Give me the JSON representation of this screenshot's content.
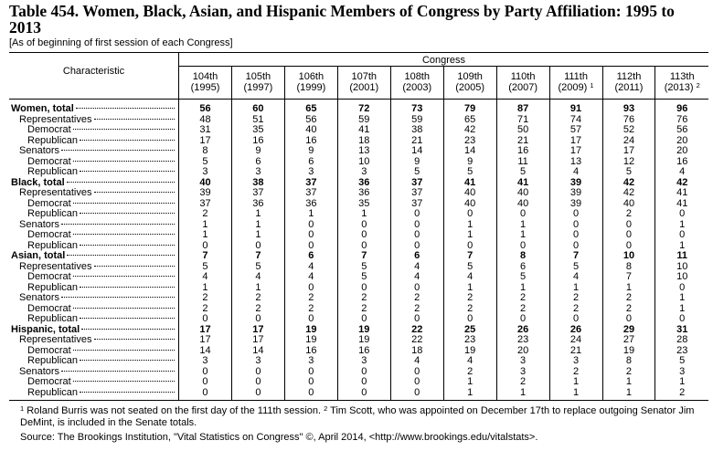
{
  "header": {
    "title": "Table 454. Women, Black, Asian, and Hispanic Members of Congress by Party Affiliation: 1995 to 2013",
    "subtitle": "[As of beginning of first session of each Congress]"
  },
  "table": {
    "stub_heading": "Characteristic",
    "spanner": "Congress",
    "columns": [
      {
        "ordinal": "104th",
        "year": "(1995)"
      },
      {
        "ordinal": "105th",
        "year": "(1997)"
      },
      {
        "ordinal": "106th",
        "year": "(1999)"
      },
      {
        "ordinal": "107th",
        "year": "(2001)"
      },
      {
        "ordinal": "108th",
        "year": "(2003)"
      },
      {
        "ordinal": "109th",
        "year": "(2005)"
      },
      {
        "ordinal": "110th",
        "year": "(2007)"
      },
      {
        "ordinal": "111th",
        "year": "(2009)",
        "note": "1"
      },
      {
        "ordinal": "112th",
        "year": "(2011)"
      },
      {
        "ordinal": "113th",
        "year": "(2013)",
        "note": "2"
      }
    ],
    "groups": [
      {
        "label": "Women, total",
        "values": [
          56,
          60,
          65,
          72,
          73,
          79,
          87,
          91,
          93,
          96
        ],
        "children": [
          {
            "label": "Representatives",
            "values": [
              48,
              51,
              56,
              59,
              59,
              65,
              71,
              74,
              76,
              76
            ],
            "children": [
              {
                "label": "Democrat",
                "values": [
                  31,
                  35,
                  40,
                  41,
                  38,
                  42,
                  50,
                  57,
                  52,
                  56
                ]
              },
              {
                "label": "Republican",
                "values": [
                  17,
                  16,
                  16,
                  18,
                  21,
                  23,
                  21,
                  17,
                  24,
                  20
                ]
              }
            ]
          },
          {
            "label": "Senators",
            "values": [
              8,
              9,
              9,
              13,
              14,
              14,
              16,
              17,
              17,
              20
            ],
            "children": [
              {
                "label": "Democrat",
                "values": [
                  5,
                  6,
                  6,
                  10,
                  9,
                  9,
                  11,
                  13,
                  12,
                  16
                ]
              },
              {
                "label": "Republican",
                "values": [
                  3,
                  3,
                  3,
                  3,
                  5,
                  5,
                  5,
                  4,
                  5,
                  4
                ]
              }
            ]
          }
        ]
      },
      {
        "label": "Black, total",
        "values": [
          40,
          38,
          37,
          36,
          37,
          41,
          41,
          39,
          42,
          42
        ],
        "children": [
          {
            "label": "Representatives",
            "values": [
              39,
              37,
              37,
              36,
              37,
              40,
              40,
              39,
              42,
              41
            ],
            "children": [
              {
                "label": "Democrat",
                "values": [
                  37,
                  36,
                  36,
                  35,
                  37,
                  40,
                  40,
                  39,
                  40,
                  41
                ]
              },
              {
                "label": "Republican",
                "values": [
                  2,
                  1,
                  1,
                  1,
                  0,
                  0,
                  0,
                  0,
                  2,
                  0
                ]
              }
            ]
          },
          {
            "label": "Senators",
            "values": [
              1,
              1,
              0,
              0,
              0,
              1,
              1,
              0,
              0,
              1
            ],
            "children": [
              {
                "label": "Democrat",
                "values": [
                  1,
                  1,
                  0,
                  0,
                  0,
                  1,
                  1,
                  0,
                  0,
                  0
                ]
              },
              {
                "label": "Republican",
                "values": [
                  0,
                  0,
                  0,
                  0,
                  0,
                  0,
                  0,
                  0,
                  0,
                  1
                ]
              }
            ]
          }
        ]
      },
      {
        "label": "Asian, total",
        "values": [
          7,
          7,
          6,
          7,
          6,
          7,
          8,
          7,
          10,
          11
        ],
        "children": [
          {
            "label": "Representatives",
            "values": [
              5,
              5,
              4,
              5,
              4,
              5,
              6,
              5,
              8,
              10
            ],
            "children": [
              {
                "label": "Democrat",
                "values": [
                  4,
                  4,
                  4,
                  5,
                  4,
                  4,
                  5,
                  4,
                  7,
                  10
                ]
              },
              {
                "label": "Republican",
                "values": [
                  1,
                  1,
                  0,
                  0,
                  0,
                  1,
                  1,
                  1,
                  1,
                  0
                ]
              }
            ]
          },
          {
            "label": "Senators",
            "values": [
              2,
              2,
              2,
              2,
              2,
              2,
              2,
              2,
              2,
              1
            ],
            "children": [
              {
                "label": "Democrat",
                "values": [
                  2,
                  2,
                  2,
                  2,
                  2,
                  2,
                  2,
                  2,
                  2,
                  1
                ]
              },
              {
                "label": "Republican",
                "values": [
                  0,
                  0,
                  0,
                  0,
                  0,
                  0,
                  0,
                  0,
                  0,
                  0
                ]
              }
            ]
          }
        ]
      },
      {
        "label": "Hispanic, total",
        "values": [
          17,
          17,
          19,
          19,
          22,
          25,
          26,
          26,
          29,
          31
        ],
        "children": [
          {
            "label": "Representatives",
            "values": [
              17,
              17,
              19,
              19,
              22,
              23,
              23,
              24,
              27,
              28
            ],
            "children": [
              {
                "label": "Democrat",
                "values": [
                  14,
                  14,
                  16,
                  16,
                  18,
                  19,
                  20,
                  21,
                  19,
                  23
                ]
              },
              {
                "label": "Republican",
                "values": [
                  3,
                  3,
                  3,
                  3,
                  4,
                  4,
                  3,
                  3,
                  8,
                  5
                ]
              }
            ]
          },
          {
            "label": "Senators",
            "values": [
              0,
              0,
              0,
              0,
              0,
              2,
              3,
              2,
              2,
              3
            ],
            "children": [
              {
                "label": "Democrat",
                "values": [
                  0,
                  0,
                  0,
                  0,
                  0,
                  1,
                  2,
                  1,
                  1,
                  1
                ]
              },
              {
                "label": "Republican",
                "values": [
                  0,
                  0,
                  0,
                  0,
                  0,
                  1,
                  1,
                  1,
                  1,
                  2
                ]
              }
            ]
          }
        ]
      }
    ]
  },
  "footnotes": [
    {
      "mark": "1",
      "text": "Roland Burris was not seated on the first day of the 111th session."
    },
    {
      "mark": "2",
      "text": "Tim Scott, who was appointed on December 17th to replace outgoing Senator Jim DeMint, is included in the Senate totals."
    }
  ],
  "source": "Source: The Brookings Institution, \"Vital Statistics on Congress\" ©, April 2014, <http://www.brookings.edu/vitalstats>."
}
